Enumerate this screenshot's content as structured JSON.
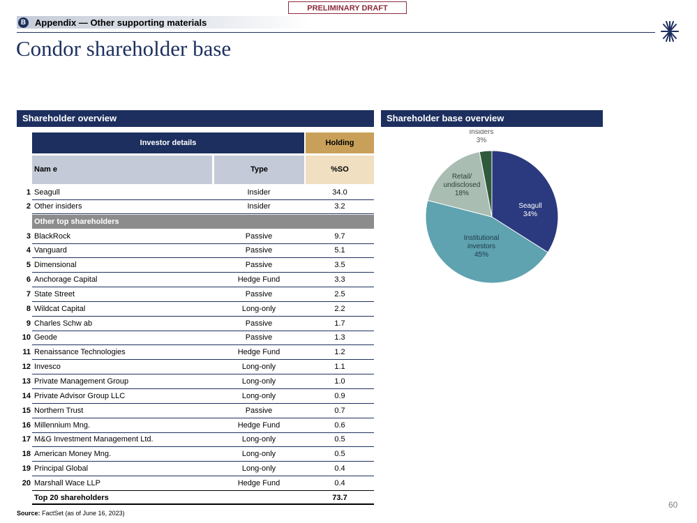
{
  "draft_label": "PRELIMINARY DRAFT",
  "appendix": {
    "badge": "B",
    "text": "Appendix — Other supporting materials"
  },
  "page_title": "Condor shareholder base",
  "left_section": "Shareholder overview",
  "right_section": "Shareholder base overview",
  "table": {
    "group_header_details": "Investor details",
    "group_header_holding": "Holding",
    "col_name": "Nam e",
    "col_type": "Type",
    "col_so": "%SO",
    "insider_rows": [
      {
        "num": "1",
        "name": "Seagull",
        "type": "Insider",
        "so": "34.0"
      },
      {
        "num": "2",
        "name": "Other insiders",
        "type": "Insider",
        "so": "3.2"
      }
    ],
    "other_group_label": "Other top shareholders",
    "other_rows": [
      {
        "num": "3",
        "name": "BlackRock",
        "type": "Passive",
        "so": "9.7"
      },
      {
        "num": "4",
        "name": "Vanguard",
        "type": "Passive",
        "so": "5.1"
      },
      {
        "num": "5",
        "name": "Dimensional",
        "type": "Passive",
        "so": "3.5"
      },
      {
        "num": "6",
        "name": "Anchorage Capital",
        "type": "Hedge Fund",
        "so": "3.3"
      },
      {
        "num": "7",
        "name": "State Street",
        "type": "Passive",
        "so": "2.5"
      },
      {
        "num": "8",
        "name": "Wildcat Capital",
        "type": "Long-only",
        "so": "2.2"
      },
      {
        "num": "9",
        "name": "Charles Schw ab",
        "type": "Passive",
        "so": "1.7"
      },
      {
        "num": "10",
        "name": "Geode",
        "type": "Passive",
        "so": "1.3"
      },
      {
        "num": "11",
        "name": "Renaissance Technologies",
        "type": "Hedge Fund",
        "so": "1.2"
      },
      {
        "num": "12",
        "name": "Invesco",
        "type": "Long-only",
        "so": "1.1"
      },
      {
        "num": "13",
        "name": "Private Management Group",
        "type": "Long-only",
        "so": "1.0"
      },
      {
        "num": "14",
        "name": "Private Advisor Group LLC",
        "type": "Long-only",
        "so": "0.9"
      },
      {
        "num": "15",
        "name": "Northern Trust",
        "type": "Passive",
        "so": "0.7"
      },
      {
        "num": "16",
        "name": "Millennium Mng.",
        "type": "Hedge Fund",
        "so": "0.6"
      },
      {
        "num": "17",
        "name": "M&G Investment Management Ltd.",
        "type": "Long-only",
        "so": "0.5"
      },
      {
        "num": "18",
        "name": "American Money Mng.",
        "type": "Long-only",
        "so": "0.5"
      },
      {
        "num": "19",
        "name": "Principal Global",
        "type": "Long-only",
        "so": "0.4"
      },
      {
        "num": "20",
        "name": "Marshall Wace LLP",
        "type": "Hedge Fund",
        "so": "0.4"
      }
    ],
    "total_label": "Top 20 shareholders",
    "total_value": "73.7"
  },
  "source_label": "Source:",
  "source_text": " FactSet (as of June 16, 2023)",
  "page_number": "60",
  "chart_data": {
    "type": "pie",
    "title": "Shareholder base overview",
    "slices": [
      {
        "label": "Seagull",
        "value": 34,
        "color": "#2b3a7e",
        "text_color": "#ffffff"
      },
      {
        "label": "Institutional investors",
        "value": 45,
        "color": "#5fa2b0",
        "text_color": "#1c3a4a"
      },
      {
        "label": "Retail/ undisclosed",
        "value": 18,
        "color": "#a9bdb2",
        "text_color": "#2f3f38"
      },
      {
        "label": "Insiders",
        "value": 3,
        "color": "#2f5a3c",
        "text_color": "#555555"
      }
    ]
  }
}
